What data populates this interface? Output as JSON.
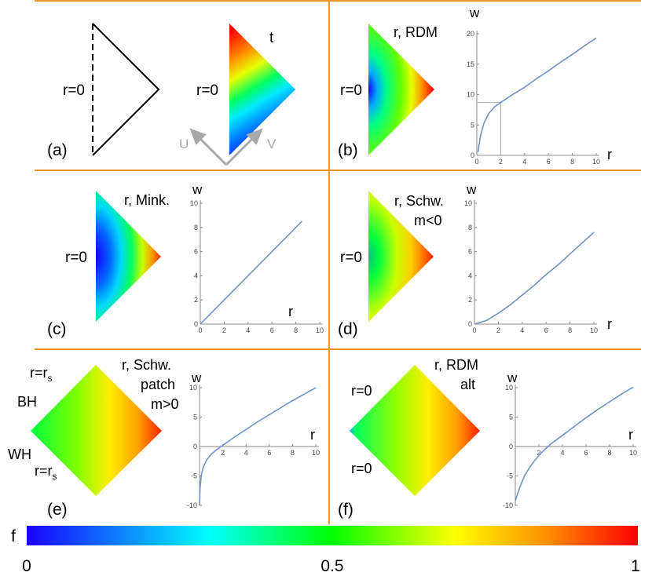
{
  "panels": {
    "a": {
      "tag": "(a)",
      "r_label": "r=0",
      "t_label": "t",
      "u_label": "U",
      "v_label": "V"
    },
    "b": {
      "tag": "(b)",
      "r_label": "r=0",
      "title": "r, RDM",
      "ylabel": "w",
      "xlabel": "r"
    },
    "c": {
      "tag": "(c)",
      "r_label": "r=0",
      "title": "r, Mink.",
      "ylabel": "w",
      "xlabel": "r"
    },
    "d": {
      "tag": "(d)",
      "r_label": "r=0",
      "title1": "r, Schw.",
      "title2": "m<0",
      "ylabel": "w",
      "xlabel": "r"
    },
    "e": {
      "tag": "(e)",
      "top_label": "r=r",
      "bottom_label": "r=r",
      "subscript": "s",
      "bh": "BH",
      "wh": "WH",
      "title1": "r, Schw.",
      "title2": "patch",
      "title3": "m>0",
      "ylabel": "w",
      "xlabel": "r"
    },
    "f": {
      "tag": "(f)",
      "top_label": "r=0",
      "bottom_label": "r=0",
      "title1": "r, RDM",
      "title2": "alt",
      "ylabel": "w",
      "xlabel": "r"
    }
  },
  "colorbar": {
    "label": "f",
    "min": "0",
    "mid": "0.5",
    "max": "1"
  },
  "colors": {
    "divider": "#f0962a",
    "curve": "#6f93c6",
    "axis": "#888888",
    "scale": [
      "#1a00ff",
      "#00ffff",
      "#00ff00",
      "#ffff00",
      "#ff8000",
      "#ff0000"
    ]
  },
  "chart_data": [
    {
      "id": "b",
      "type": "line",
      "xlim": [
        0,
        10
      ],
      "ylim": [
        0,
        20
      ],
      "xticks": [
        "0",
        "2",
        "4",
        "6",
        "8",
        "10"
      ],
      "yticks": [
        "0",
        "5",
        "10",
        "15",
        "20"
      ],
      "reference_point": [
        2,
        8.7
      ],
      "series": [
        {
          "x": [
            0.1,
            0.3,
            0.6,
            1,
            1.5,
            2,
            3,
            4,
            5,
            6,
            7,
            8,
            9,
            10
          ],
          "y": [
            0.5,
            3.2,
            5.3,
            6.9,
            8,
            8.7,
            10,
            11.2,
            12.6,
            13.9,
            15.3,
            16.6,
            18,
            19.3
          ]
        }
      ]
    },
    {
      "id": "c",
      "type": "line",
      "xlim": [
        0,
        10
      ],
      "ylim": [
        0,
        10
      ],
      "xticks": [
        "0",
        "2",
        "4",
        "6",
        "8",
        "10"
      ],
      "yticks": [
        "0",
        "2",
        "4",
        "6",
        "8",
        "10"
      ],
      "series": [
        {
          "x": [
            0,
            8.5
          ],
          "y": [
            0,
            8.5
          ]
        }
      ]
    },
    {
      "id": "d",
      "type": "line",
      "xlim": [
        0,
        10
      ],
      "ylim": [
        0,
        10
      ],
      "xticks": [
        "0",
        "2",
        "4",
        "6",
        "8",
        "10"
      ],
      "yticks": [
        "0",
        "2",
        "4",
        "6",
        "8",
        "10"
      ],
      "series": [
        {
          "x": [
            0,
            1,
            2,
            3,
            4,
            5,
            6,
            7,
            8,
            9,
            10
          ],
          "y": [
            0,
            0.3,
            0.9,
            1.6,
            2.4,
            3.2,
            4.1,
            4.9,
            5.8,
            6.7,
            7.6
          ]
        }
      ]
    },
    {
      "id": "e",
      "type": "line",
      "xlim": [
        0,
        10
      ],
      "ylim": [
        -10,
        10
      ],
      "xticks": [
        "2",
        "4",
        "6",
        "8",
        "10"
      ],
      "yticks": [
        "-10",
        "-5",
        "0",
        "5",
        "10"
      ],
      "series": [
        {
          "x": [
            0,
            0.05,
            0.15,
            0.3,
            0.6,
            1,
            1.5,
            2,
            3,
            4,
            5,
            6,
            7,
            8,
            9,
            10
          ],
          "y": [
            -10,
            -7,
            -5,
            -3.6,
            -2.3,
            -1.3,
            -0.5,
            0.2,
            1.6,
            2.9,
            4.2,
            5.4,
            6.6,
            7.8,
            8.9,
            10
          ]
        }
      ]
    },
    {
      "id": "f",
      "type": "line",
      "xlim": [
        0,
        10
      ],
      "ylim": [
        -10,
        10
      ],
      "xticks": [
        "2",
        "4",
        "6",
        "8",
        "10"
      ],
      "yticks": [
        "-10",
        "-5",
        "0",
        "5",
        "10"
      ],
      "series": [
        {
          "x": [
            0,
            0.2,
            0.5,
            0.8,
            1.2,
            1.6,
            2,
            2.5,
            3,
            4,
            5,
            6,
            7,
            8,
            9,
            10
          ],
          "y": [
            -9.2,
            -8,
            -6.3,
            -4.9,
            -3.6,
            -2.5,
            -1.5,
            -0.5,
            0.4,
            1.9,
            3.4,
            4.9,
            6.3,
            7.6,
            8.9,
            10.1
          ]
        }
      ]
    }
  ]
}
